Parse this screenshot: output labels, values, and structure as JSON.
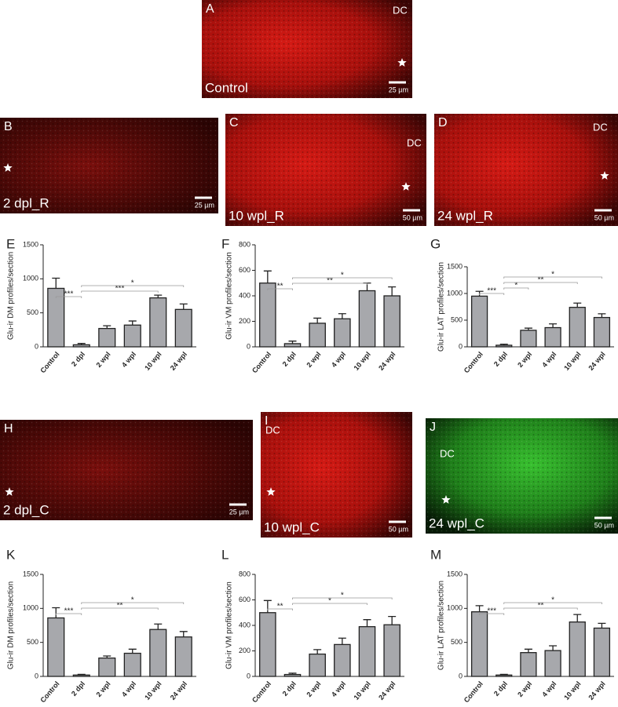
{
  "panels": [
    {
      "letter": "A",
      "region": "DC",
      "condition": "Control",
      "scale": "25 µm"
    },
    {
      "letter": "B",
      "condition": "2 dpl_R",
      "scale": "25 µm"
    },
    {
      "letter": "C",
      "region": "DC",
      "condition": "10 wpl_R",
      "scale": "50 µm"
    },
    {
      "letter": "D",
      "region": "DC",
      "condition": "24 wpl_R",
      "scale": "50 µm"
    },
    {
      "letter": "H",
      "condition": "2 dpl_C",
      "scale": "25 µm"
    },
    {
      "letter": "I",
      "region": "DC",
      "condition": "10 wpl_C",
      "scale": "50 µm"
    },
    {
      "letter": "J",
      "region": "DC",
      "condition": "24 wpl_C",
      "scale": "50 µm"
    }
  ],
  "chart_data": [
    {
      "type": "bar",
      "panel": "E",
      "ylabel": "Glu-ir DM profiles/section",
      "color": "#a7a8ac",
      "categories": [
        "Control",
        "2 dpl",
        "2 wpl",
        "4 wpl",
        "10 wpl",
        "24 wpl"
      ],
      "values": [
        860,
        30,
        270,
        320,
        720,
        550
      ],
      "errors": [
        150,
        20,
        40,
        60,
        40,
        80
      ],
      "ylim": [
        0,
        1500
      ],
      "yticks": [
        0,
        500,
        1000,
        1500
      ],
      "comparisons": [
        {
          "between": [
            "Control",
            "2 dpl"
          ],
          "label": "***"
        },
        {
          "between": [
            "2 dpl",
            "10 wpl"
          ],
          "label": "***"
        },
        {
          "between": [
            "2 dpl",
            "24 wpl"
          ],
          "label": "*"
        }
      ]
    },
    {
      "type": "bar",
      "panel": "F",
      "ylabel": "Glu-ir VM profiles/section",
      "color": "#a7a8ac",
      "categories": [
        "Control",
        "2 dpl",
        "2 wpl",
        "4 wpl",
        "10 wpl",
        "24 wpl"
      ],
      "values": [
        500,
        25,
        185,
        220,
        440,
        400
      ],
      "errors": [
        95,
        20,
        40,
        40,
        60,
        70
      ],
      "ylim": [
        0,
        800
      ],
      "yticks": [
        0,
        200,
        400,
        600,
        800
      ],
      "comparisons": [
        {
          "between": [
            "Control",
            "2 dpl"
          ],
          "label": "**"
        },
        {
          "between": [
            "2 dpl",
            "10 wpl"
          ],
          "label": "**"
        },
        {
          "between": [
            "2 dpl",
            "24 wpl"
          ],
          "label": "*"
        }
      ]
    },
    {
      "type": "bar",
      "panel": "G",
      "ylabel": "Glu-ir LAT profiles/section",
      "color": "#a7a8ac",
      "categories": [
        "Control",
        "2 dpl",
        "2 wpl",
        "4 wpl",
        "10 wpl",
        "24 wpl"
      ],
      "values": [
        950,
        30,
        310,
        360,
        740,
        550
      ],
      "errors": [
        90,
        20,
        40,
        70,
        80,
        70
      ],
      "ylim": [
        0,
        1500
      ],
      "yticks": [
        0,
        500,
        1000,
        1500
      ],
      "comparisons": [
        {
          "between": [
            "Control",
            "2 dpl"
          ],
          "label": "***"
        },
        {
          "between": [
            "2 dpl",
            "2 wpl"
          ],
          "label": "*"
        },
        {
          "between": [
            "2 dpl",
            "10 wpl"
          ],
          "label": "**"
        },
        {
          "between": [
            "2 dpl",
            "24 wpl"
          ],
          "label": "*"
        }
      ]
    },
    {
      "type": "bar",
      "panel": "K",
      "ylabel": "Glu-ir DM profiles/section",
      "color": "#a7a8ac",
      "categories": [
        "Control",
        "2 dpl",
        "2 wpl",
        "4 wpl",
        "10 wpl",
        "24 wpl"
      ],
      "values": [
        860,
        20,
        270,
        340,
        690,
        580
      ],
      "errors": [
        150,
        10,
        30,
        60,
        80,
        80
      ],
      "ylim": [
        0,
        1500
      ],
      "yticks": [
        0,
        500,
        1000,
        1500
      ],
      "comparisons": [
        {
          "between": [
            "Control",
            "2 dpl"
          ],
          "label": "***"
        },
        {
          "between": [
            "2 dpl",
            "10 wpl"
          ],
          "label": "**"
        },
        {
          "between": [
            "2 dpl",
            "24 wpl"
          ],
          "label": "*"
        }
      ]
    },
    {
      "type": "bar",
      "panel": "L",
      "ylabel": "Glu-ir VM profiles/section",
      "color": "#a7a8ac",
      "categories": [
        "Control",
        "2 dpl",
        "2 wpl",
        "4 wpl",
        "10 wpl",
        "24 wpl"
      ],
      "values": [
        500,
        15,
        175,
        250,
        390,
        405
      ],
      "errors": [
        95,
        10,
        35,
        50,
        55,
        65
      ],
      "ylim": [
        0,
        800
      ],
      "yticks": [
        0,
        200,
        400,
        600,
        800
      ],
      "comparisons": [
        {
          "between": [
            "Control",
            "2 dpl"
          ],
          "label": "**"
        },
        {
          "between": [
            "2 dpl",
            "10 wpl"
          ],
          "label": "*"
        },
        {
          "between": [
            "2 dpl",
            "24 wpl"
          ],
          "label": "*"
        }
      ]
    },
    {
      "type": "bar",
      "panel": "M",
      "ylabel": "Glu-ir LAT profiles/section",
      "color": "#a7a8ac",
      "categories": [
        "Control",
        "2 dpl",
        "2 wpl",
        "4 wpl",
        "10 wpl",
        "24 wpl"
      ],
      "values": [
        950,
        20,
        350,
        380,
        800,
        710
      ],
      "errors": [
        90,
        10,
        50,
        70,
        110,
        70
      ],
      "ylim": [
        0,
        1500
      ],
      "yticks": [
        0,
        500,
        1000,
        1500
      ],
      "comparisons": [
        {
          "between": [
            "Control",
            "2 dpl"
          ],
          "label": "***"
        },
        {
          "between": [
            "2 dpl",
            "10 wpl"
          ],
          "label": "**"
        },
        {
          "between": [
            "2 dpl",
            "24 wpl"
          ],
          "label": "*"
        }
      ]
    }
  ]
}
